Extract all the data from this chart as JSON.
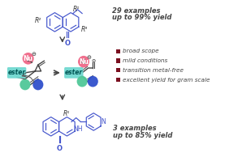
{
  "bg_color": "#ffffff",
  "bullet_color": "#7a1020",
  "bullet_items": [
    "broad scope",
    "mild conditions",
    "transition metal-free",
    "excellent yield for gram scale"
  ],
  "top_text_line1": "29 examples",
  "top_text_line2": "up to 99% yield",
  "bottom_text_line1": "3 examples",
  "bottom_text_line2": "up to 85% yield",
  "arrow_color": "#444444",
  "ester_color": "#70d8d0",
  "nu_color": "#f06888",
  "green_color": "#50c898",
  "blue_color": "#3050cc",
  "struct_color": "#4455cc",
  "label_color": "#333333"
}
